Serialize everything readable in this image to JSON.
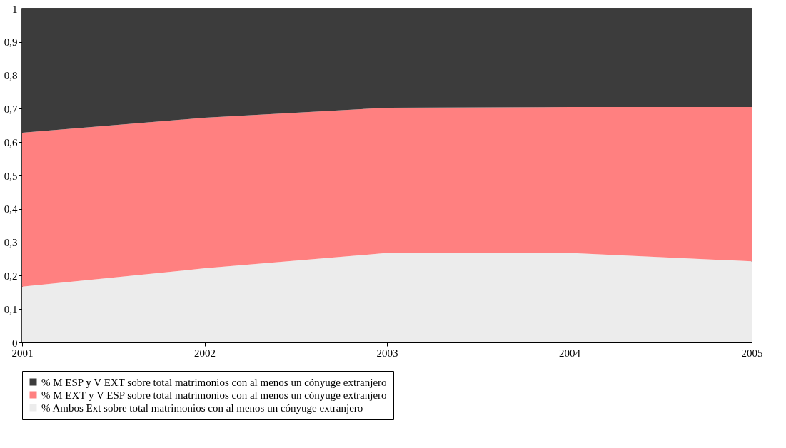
{
  "chart_data": {
    "type": "area",
    "stacked": true,
    "categories": [
      "2001",
      "2002",
      "2003",
      "2004",
      "2005"
    ],
    "series": [
      {
        "name": "% Ambos Ext sobre total matrimonios con al menos un cónyuge extranjero",
        "color": "#ececec",
        "values": [
          0.167,
          0.222,
          0.268,
          0.268,
          0.243
        ]
      },
      {
        "name": "% M EXT y V ESP sobre total matrimonios con al menos un cónyuge extranjero",
        "color": "#ff8080",
        "values": [
          0.461,
          0.451,
          0.435,
          0.437,
          0.462
        ]
      },
      {
        "name": "% M ESP y V EXT sobre total matrimonios con al menos un cónyuge extranjero",
        "color": "#3c3c3c",
        "values": [
          0.372,
          0.327,
          0.297,
          0.295,
          0.295
        ]
      }
    ],
    "ylim": [
      0,
      1
    ],
    "yticks": [
      0,
      {
        "value": 0.1,
        "label": "0,1"
      },
      {
        "value": 0.2,
        "label": "0,2"
      },
      {
        "value": 0.3,
        "label": "0,3"
      },
      {
        "value": 0.4,
        "label": "0,4"
      },
      {
        "value": 0.5,
        "label": "0,5"
      },
      {
        "value": 0.6,
        "label": "0,6"
      },
      {
        "value": 0.7,
        "label": "0,7"
      },
      {
        "value": 0.8,
        "label": "0,8"
      },
      {
        "value": 0.9,
        "label": "0,9"
      },
      1
    ],
    "grid": false,
    "legend": "bottom"
  }
}
